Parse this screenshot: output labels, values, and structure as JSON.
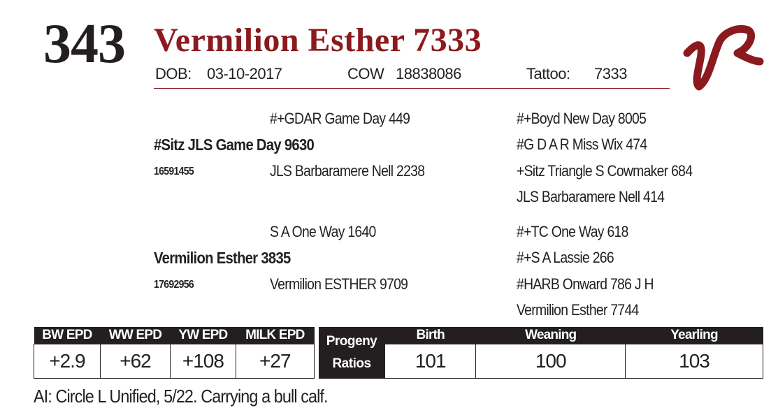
{
  "header": {
    "lot": "343",
    "name": "Vermilion Esther 7333",
    "dob_label": "DOB:",
    "dob": "03-10-2017",
    "reg_label": "COW",
    "reg": "18838086",
    "tattoo_label": "Tattoo:",
    "tattoo": "7333"
  },
  "logo": {
    "text": "VR",
    "color": "#8b1a1e"
  },
  "pedigree": {
    "sire": {
      "name": "#Sitz JLS Game Day 9630",
      "reg": "16591455",
      "sire": "#+GDAR Game Day 449",
      "dam": "JLS Barbaramere Nell 2238",
      "ss": "#+Boyd New Day 8005",
      "sd": "#G D A R Miss Wix 474",
      "ds": "+Sitz Triangle S Cowmaker 684",
      "dd": "JLS Barbaramere Nell 414"
    },
    "dam": {
      "name": "Vermilion Esther 3835",
      "reg": "17692956",
      "sire": "S A One Way 1640",
      "dam": "Vermilion ESTHER 9709",
      "ss": "#+TC One Way 618",
      "sd": "#+S A Lassie 266",
      "ds": "#HARB Onward 786 J H",
      "dd": "Vermilion Esther 7744"
    }
  },
  "epd": {
    "headers": [
      "BW EPD",
      "WW EPD",
      "YW EPD",
      "MILK EPD"
    ],
    "values": [
      "+2.9",
      "+62",
      "+108",
      "+27"
    ]
  },
  "progeny": {
    "label1": "Progeny",
    "label2": "Ratios",
    "headers": [
      "Birth",
      "Weaning",
      "Yearling"
    ],
    "values": [
      "101",
      "100",
      "103"
    ]
  },
  "note": "AI: Circle L Unified, 5/22. Carrying a bull calf."
}
